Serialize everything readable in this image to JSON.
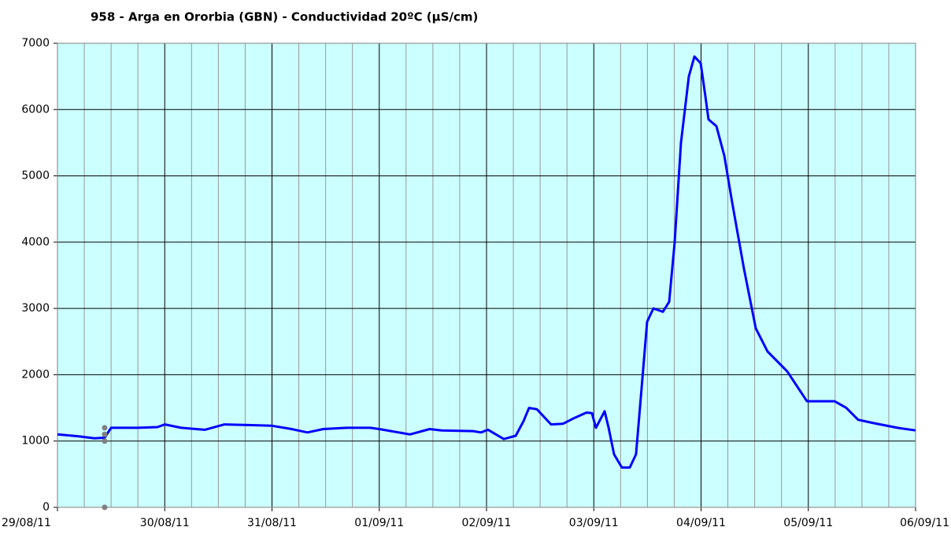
{
  "chart_data": {
    "type": "line",
    "title": "958 - Arga en Ororbia (GBN) - Conductividad 20ºC (µS/cm)",
    "xlim": [
      0,
      8
    ],
    "xticks": [
      {
        "value": 0,
        "label": "29/08/11"
      },
      {
        "value": 1,
        "label": "30/08/11"
      },
      {
        "value": 2,
        "label": "31/08/11"
      },
      {
        "value": 3,
        "label": "01/09/11"
      },
      {
        "value": 4,
        "label": "02/09/11"
      },
      {
        "value": 5,
        "label": "03/09/11"
      },
      {
        "value": 6,
        "label": "04/09/11"
      },
      {
        "value": 7,
        "label": "05/09/11"
      },
      {
        "value": 8,
        "label": "06/09/11"
      }
    ],
    "minor_per_major": 4,
    "ylim": [
      0,
      7000
    ],
    "yticks": [
      0,
      1000,
      2000,
      3000,
      4000,
      5000,
      6000,
      7000
    ],
    "grid": true,
    "background": "#ccffff",
    "series": [
      {
        "color": "#0000ff",
        "x": [
          0,
          0.198,
          0.345,
          0.44,
          0.5,
          0.75,
          0.932,
          1.0,
          1.154,
          1.374,
          1.557,
          1.813,
          2.0,
          2.183,
          2.33,
          2.477,
          2.697,
          2.917,
          3.0,
          3.286,
          3.47,
          3.58,
          3.875,
          3.948,
          4.015,
          4.161,
          4.272,
          4.345,
          4.396,
          4.47,
          4.602,
          4.712,
          4.822,
          4.932,
          4.983,
          5.02,
          5.101,
          5.138,
          5.189,
          5.262,
          5.336,
          5.394,
          5.446,
          5.497,
          5.556,
          5.644,
          5.703,
          5.754,
          5.813,
          5.886,
          5.938,
          5.996,
          6.04,
          6.07,
          6.143,
          6.217,
          6.29,
          6.4,
          6.51,
          6.62,
          6.804,
          6.987,
          7.244,
          7.354,
          7.464,
          7.611,
          7.831,
          8.0
        ],
        "values": [
          1100,
          1070,
          1040,
          1050,
          1200,
          1200,
          1210,
          1250,
          1200,
          1170,
          1250,
          1240,
          1230,
          1180,
          1130,
          1180,
          1200,
          1200,
          1180,
          1100,
          1180,
          1160,
          1150,
          1130,
          1170,
          1030,
          1080,
          1300,
          1500,
          1480,
          1250,
          1260,
          1350,
          1430,
          1420,
          1200,
          1450,
          1200,
          800,
          600,
          600,
          800,
          1800,
          2800,
          3000,
          2950,
          3100,
          4000,
          5500,
          6500,
          6800,
          6700,
          6200,
          5850,
          5750,
          5300,
          4600,
          3600,
          2700,
          2350,
          2050,
          1600,
          1600,
          1500,
          1320,
          1270,
          1200,
          1160
        ]
      },
      {
        "color": "#808080",
        "marker": true,
        "x": [
          0.44,
          0.44,
          0.44,
          0.44
        ],
        "values": [
          0,
          1000,
          1100,
          1200
        ]
      }
    ]
  }
}
